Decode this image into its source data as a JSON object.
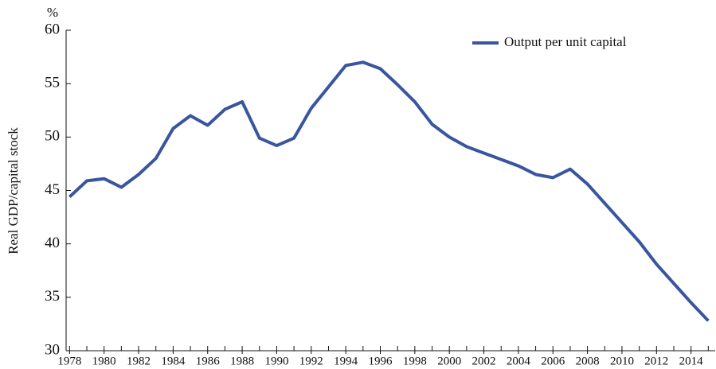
{
  "chart_data": {
    "type": "line",
    "y_unit": "%",
    "ylabel": "Real GDP/capital stock",
    "x": [
      1978,
      1979,
      1980,
      1981,
      1982,
      1983,
      1984,
      1985,
      1986,
      1987,
      1988,
      1989,
      1990,
      1991,
      1992,
      1993,
      1994,
      1995,
      1996,
      1997,
      1998,
      1999,
      2000,
      2001,
      2002,
      2003,
      2004,
      2005,
      2006,
      2007,
      2008,
      2009,
      2010,
      2011,
      2012,
      2013,
      2014,
      2015
    ],
    "series": [
      {
        "name": "Output per unit capital",
        "color": "#3a55a0",
        "values": [
          44.4,
          45.9,
          46.1,
          45.3,
          46.5,
          48.0,
          50.8,
          52.0,
          51.1,
          52.6,
          53.3,
          49.9,
          49.2,
          49.9,
          52.7,
          54.7,
          56.7,
          57.0,
          56.4,
          54.9,
          53.3,
          51.2,
          50.0,
          49.1,
          48.5,
          47.9,
          47.3,
          46.5,
          46.2,
          47.0,
          45.6,
          43.8,
          42.0,
          40.2,
          38.1,
          36.3,
          34.5,
          32.8
        ]
      }
    ],
    "xlim": [
      1977.8,
      2015.4
    ],
    "xticks": [
      1978,
      1980,
      1982,
      1984,
      1986,
      1988,
      1990,
      1992,
      1994,
      1996,
      1998,
      2000,
      2002,
      2004,
      2006,
      2008,
      2010,
      2012,
      2014
    ],
    "ylim": [
      30,
      60
    ],
    "yticks": [
      30,
      35,
      40,
      45,
      50,
      55,
      60
    ],
    "legend": "top-right"
  }
}
